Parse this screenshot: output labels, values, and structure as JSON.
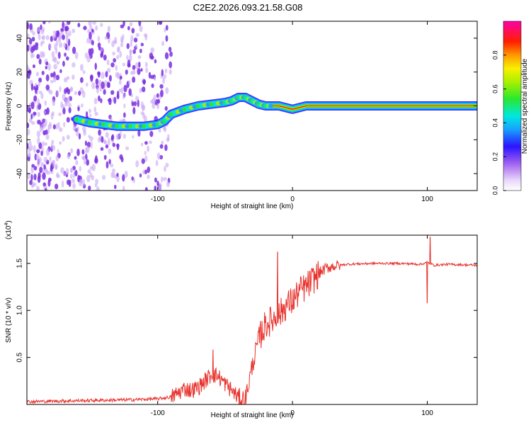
{
  "title": "C2E2.2026.093.21.58.G08",
  "colors": {
    "background": "#ffffff",
    "axis": "#000000",
    "snr_line": "#e8322d",
    "scatter_purple": "#7a2fe0",
    "scatter_light": "#c9a8f5"
  },
  "chart_data": [
    {
      "type": "heatmap",
      "name": "spectrogram",
      "xlabel": "Height of straight line (km)",
      "ylabel": "Frequency (Hz)",
      "xlim": [
        -197,
        137
      ],
      "ylim": [
        -50,
        50
      ],
      "x_ticks": [
        -100,
        0,
        100
      ],
      "y_ticks": [
        -40,
        -20,
        0,
        20,
        40
      ],
      "colorbar": {
        "label": "Normalized spectral amplitude",
        "ticks": [
          0.0,
          0.2,
          0.4,
          0.6,
          0.8
        ],
        "range": [
          0.0,
          1.0
        ],
        "colormap": "rainbow"
      },
      "ridge": {
        "x": [
          -160,
          -150,
          -140,
          -130,
          -120,
          -110,
          -100,
          -95,
          -90,
          -80,
          -70,
          -60,
          -50,
          -45,
          -40,
          -35,
          -30,
          -25,
          -20,
          -15,
          -10,
          -5,
          0,
          5,
          10,
          20,
          40,
          60,
          80,
          100,
          120,
          137
        ],
        "y": [
          -8,
          -10,
          -11,
          -12,
          -12,
          -12,
          -11,
          -9,
          -5,
          -2,
          0,
          1,
          2,
          3,
          5,
          5,
          3,
          1,
          0,
          0,
          0,
          -1,
          -2,
          -1,
          0,
          0,
          0,
          0,
          0,
          0,
          0,
          0
        ]
      },
      "noise_region_xlim": [
        -197,
        -90
      ]
    },
    {
      "type": "line",
      "name": "snr",
      "xlabel": "Height of straight line (km)",
      "ylabel": "SNR (10 * v/v)",
      "y_multiplier": "(x10",
      "y_multiplier_exp": "4",
      "y_multiplier_close": ")",
      "xlim": [
        -197,
        137
      ],
      "ylim": [
        0,
        18000
      ],
      "x_ticks": [
        -100,
        0,
        100
      ],
      "y_ticks": [
        5000,
        10000,
        15000
      ],
      "y_tick_labels": [
        "0.5",
        "1.0",
        "1.5"
      ],
      "x": [
        -197,
        -160,
        -120,
        -100,
        -90,
        -85,
        -80,
        -75,
        -70,
        -65,
        -60,
        -55,
        -50,
        -45,
        -40,
        -35,
        -30,
        -25,
        -20,
        -15,
        -10,
        -5,
        0,
        5,
        10,
        15,
        20,
        25,
        30,
        40,
        60,
        80,
        95,
        100,
        105,
        115,
        137
      ],
      "values": [
        300,
        400,
        500,
        600,
        800,
        1200,
        1700,
        1500,
        1800,
        2500,
        3200,
        3000,
        2200,
        1500,
        700,
        500,
        4000,
        7000,
        8500,
        9000,
        9500,
        10500,
        11000,
        12000,
        12500,
        13200,
        14000,
        14500,
        14700,
        14900,
        15000,
        15000,
        14900,
        15100,
        14800,
        14900,
        14800
      ],
      "spikes": [
        {
          "x": -59,
          "value": 5800
        },
        {
          "x": -11,
          "value": 16200
        },
        {
          "x": 100,
          "value": 10800
        },
        {
          "x": 102,
          "value": 17800
        }
      ]
    }
  ]
}
